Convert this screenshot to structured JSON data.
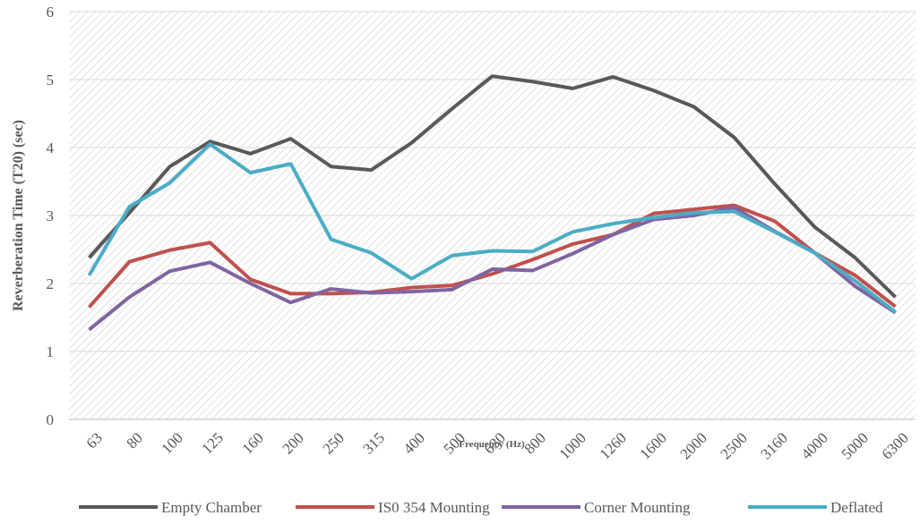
{
  "chart_data": {
    "type": "line",
    "x_label": "Frequency (Hz)",
    "y_label": "Reverberation Time (T20) (sec)",
    "categories": [
      "63",
      "80",
      "100",
      "125",
      "160",
      "200",
      "250",
      "315",
      "400",
      "500",
      "630",
      "800",
      "1000",
      "1260",
      "1600",
      "2000",
      "2500",
      "3160",
      "4000",
      "5000",
      "6300"
    ],
    "series": [
      {
        "name": "Empty Chamber",
        "color": "#595959",
        "values": [
          2.38,
          3.04,
          3.72,
          4.09,
          3.91,
          4.13,
          3.72,
          3.67,
          4.07,
          4.57,
          5.05,
          4.97,
          4.87,
          5.04,
          4.84,
          4.6,
          4.15,
          3.47,
          2.83,
          2.38,
          1.8
        ]
      },
      {
        "name": "IS0 354 Mounting",
        "color": "#c0504d",
        "values": [
          1.65,
          2.32,
          2.49,
          2.6,
          2.06,
          1.85,
          1.85,
          1.87,
          1.94,
          1.97,
          2.14,
          2.35,
          2.58,
          2.72,
          3.03,
          3.09,
          3.15,
          2.92,
          2.45,
          2.12,
          1.66
        ]
      },
      {
        "name": "Corner Mounting",
        "color": "#8064a2",
        "values": [
          1.32,
          1.8,
          2.18,
          2.31,
          2.0,
          1.72,
          1.92,
          1.86,
          1.88,
          1.91,
          2.21,
          2.19,
          2.44,
          2.72,
          2.94,
          3.0,
          3.12,
          2.77,
          2.45,
          1.96,
          1.57
        ]
      },
      {
        "name": "Deflated",
        "color": "#4bacc6",
        "values": [
          2.12,
          3.13,
          3.48,
          4.05,
          3.63,
          3.76,
          2.65,
          2.45,
          2.07,
          2.41,
          2.48,
          2.47,
          2.76,
          2.88,
          2.97,
          3.04,
          3.06,
          2.76,
          2.45,
          2.04,
          1.58
        ]
      }
    ],
    "ylim": [
      0,
      6
    ],
    "yticks": [
      0,
      1,
      2,
      3,
      4,
      5,
      6
    ],
    "grid": true,
    "legend": "bottom"
  }
}
